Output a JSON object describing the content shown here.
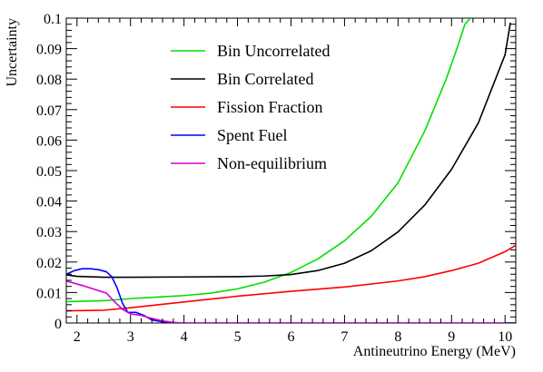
{
  "chart_data": {
    "type": "line",
    "title": "",
    "xlabel": "Antineutrino Energy (MeV)",
    "ylabel": "Uncertainty",
    "xlim": [
      1.8,
      10.2
    ],
    "ylim": [
      0,
      0.1
    ],
    "grid": false,
    "legend_position": "top-center",
    "xticks": [
      2,
      3,
      4,
      5,
      6,
      7,
      8,
      9,
      10
    ],
    "xtick_labels": [
      "2",
      "3",
      "4",
      "5",
      "6",
      "7",
      "8",
      "9",
      "10"
    ],
    "yticks": [
      0,
      0.01,
      0.02,
      0.03,
      0.04,
      0.05,
      0.06,
      0.07,
      0.08,
      0.09,
      0.1
    ],
    "ytick_labels": [
      "0",
      "0.01",
      "0.02",
      "0.03",
      "0.04",
      "0.05",
      "0.06",
      "0.07",
      "0.08",
      "0.09",
      "0.1"
    ],
    "series": [
      {
        "name": "Bin Uncorrelated",
        "color": "#00e000",
        "x": [
          1.8,
          2.5,
          3.0,
          3.5,
          4.0,
          4.5,
          5.0,
          5.5,
          6.0,
          6.5,
          7.0,
          7.5,
          8.0,
          8.5,
          8.9,
          9.1,
          9.25,
          9.35
        ],
        "y": [
          0.007,
          0.0073,
          0.008,
          0.0085,
          0.009,
          0.0098,
          0.0112,
          0.0134,
          0.0166,
          0.021,
          0.027,
          0.035,
          0.046,
          0.063,
          0.08,
          0.09,
          0.098,
          0.1
        ]
      },
      {
        "name": "Bin Correlated",
        "color": "#000000",
        "x": [
          1.8,
          2.0,
          2.5,
          3.0,
          4.0,
          5.0,
          5.5,
          6.0,
          6.5,
          7.0,
          7.5,
          8.0,
          8.5,
          9.0,
          9.5,
          10.0,
          10.1
        ],
        "y": [
          0.0158,
          0.0153,
          0.015,
          0.015,
          0.0151,
          0.0152,
          0.0154,
          0.0159,
          0.0172,
          0.0196,
          0.0237,
          0.0299,
          0.0387,
          0.0504,
          0.0656,
          0.088,
          0.0985
        ]
      },
      {
        "name": "Fission Fraction",
        "color": "#ff0000",
        "x": [
          1.8,
          2.5,
          3.0,
          4.0,
          5.0,
          6.0,
          7.0,
          8.0,
          8.5,
          9.0,
          9.5,
          10.0,
          10.2
        ],
        "y": [
          0.004,
          0.0042,
          0.005,
          0.0069,
          0.0088,
          0.0104,
          0.0118,
          0.0138,
          0.0152,
          0.0172,
          0.0196,
          0.0234,
          0.0255
        ]
      },
      {
        "name": "Spent Fuel",
        "color": "#0000ff",
        "x": [
          1.8,
          1.95,
          2.1,
          2.25,
          2.4,
          2.55,
          2.65,
          2.75,
          2.85,
          2.95,
          3.1,
          3.25,
          3.4,
          3.6,
          3.8,
          4.0,
          5.0,
          6.0,
          7.0,
          8.0,
          9.0,
          10.0,
          10.2
        ],
        "y": [
          0.016,
          0.0172,
          0.0178,
          0.0178,
          0.0175,
          0.0168,
          0.0152,
          0.0115,
          0.0065,
          0.0035,
          0.0035,
          0.0025,
          0.001,
          0.0004,
          0.0001,
          0.0,
          0.0,
          0.0,
          0.0,
          0.0,
          0.0,
          0.0,
          0.0
        ]
      },
      {
        "name": "Non-equilibrium",
        "color": "#d400d4",
        "x": [
          1.8,
          2.1,
          2.3,
          2.55,
          2.7,
          2.85,
          3.0,
          3.2,
          3.4,
          3.6,
          3.8,
          4.0,
          5.0,
          6.0,
          7.0,
          8.0,
          9.0,
          10.0,
          10.2
        ],
        "y": [
          0.0138,
          0.0123,
          0.0112,
          0.0098,
          0.007,
          0.0045,
          0.003,
          0.0025,
          0.0015,
          0.0007,
          0.0002,
          0.0,
          0.0,
          0.0,
          0.0,
          0.0,
          0.0,
          0.0,
          0.0
        ]
      }
    ]
  }
}
